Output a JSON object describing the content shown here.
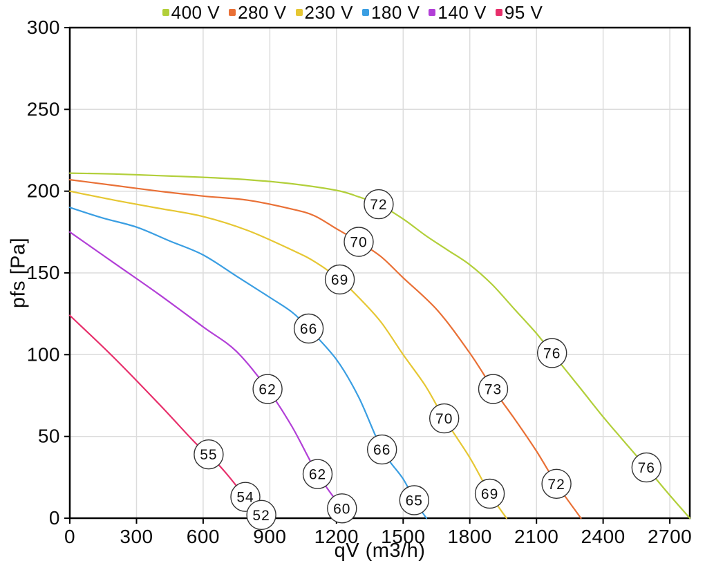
{
  "chart_data": {
    "type": "line",
    "title": "",
    "xlabel": "qV (m3/h)",
    "ylabel": "pfs [Pa]",
    "xlim": [
      0,
      2790
    ],
    "ylim": [
      0,
      300
    ],
    "x_ticks": [
      0,
      300,
      600,
      900,
      1200,
      1500,
      1800,
      2100,
      2400,
      2700
    ],
    "y_ticks": [
      0,
      50,
      100,
      150,
      200,
      250,
      300
    ],
    "grid": true,
    "legend_position": "top-center",
    "series": [
      {
        "name": "400 V",
        "color": "#b2cf3a",
        "points": [
          [
            0,
            211
          ],
          [
            200,
            210.5
          ],
          [
            400,
            209.5
          ],
          [
            600,
            208.5
          ],
          [
            800,
            207
          ],
          [
            1000,
            204.5
          ],
          [
            1200,
            200.5
          ],
          [
            1300,
            196.5
          ],
          [
            1390,
            192
          ],
          [
            1500,
            183
          ],
          [
            1600,
            173
          ],
          [
            1700,
            164
          ],
          [
            1800,
            155
          ],
          [
            1900,
            143
          ],
          [
            2000,
            128
          ],
          [
            2100,
            113
          ],
          [
            2170,
            101
          ],
          [
            2300,
            79
          ],
          [
            2400,
            62
          ],
          [
            2500,
            46
          ],
          [
            2595,
            31
          ],
          [
            2700,
            14
          ],
          [
            2790,
            0
          ]
        ],
        "labels": [
          {
            "text": "72",
            "x": 1390,
            "y": 192
          },
          {
            "text": "76",
            "x": 2170,
            "y": 101
          },
          {
            "text": "76",
            "x": 2595,
            "y": 31
          }
        ]
      },
      {
        "name": "280 V",
        "color": "#e97036",
        "points": [
          [
            0,
            207
          ],
          [
            200,
            203.5
          ],
          [
            400,
            200
          ],
          [
            600,
            197
          ],
          [
            800,
            194.5
          ],
          [
            1000,
            189
          ],
          [
            1100,
            185
          ],
          [
            1200,
            177
          ],
          [
            1300,
            169
          ],
          [
            1400,
            160
          ],
          [
            1500,
            147
          ],
          [
            1655,
            127
          ],
          [
            1800,
            101
          ],
          [
            1905,
            79
          ],
          [
            2000,
            61
          ],
          [
            2100,
            41
          ],
          [
            2190,
            21
          ],
          [
            2300,
            0
          ]
        ],
        "labels": [
          {
            "text": "70",
            "x": 1300,
            "y": 169
          },
          {
            "text": "73",
            "x": 1905,
            "y": 79
          },
          {
            "text": "72",
            "x": 2190,
            "y": 21
          }
        ]
      },
      {
        "name": "230 V",
        "color": "#e6c733",
        "points": [
          [
            0,
            200
          ],
          [
            200,
            194.5
          ],
          [
            400,
            189.5
          ],
          [
            600,
            184.5
          ],
          [
            800,
            176
          ],
          [
            1000,
            164
          ],
          [
            1100,
            157
          ],
          [
            1215,
            146
          ],
          [
            1300,
            135
          ],
          [
            1400,
            120
          ],
          [
            1500,
            100
          ],
          [
            1600,
            81
          ],
          [
            1685,
            61
          ],
          [
            1800,
            37
          ],
          [
            1890,
            15
          ],
          [
            1965,
            0
          ]
        ],
        "labels": [
          {
            "text": "69",
            "x": 1215,
            "y": 146
          },
          {
            "text": "70",
            "x": 1685,
            "y": 61
          },
          {
            "text": "69",
            "x": 1890,
            "y": 15
          }
        ]
      },
      {
        "name": "180 V",
        "color": "#3a9ee2",
        "points": [
          [
            0,
            190
          ],
          [
            150,
            183.5
          ],
          [
            300,
            178
          ],
          [
            450,
            169.5
          ],
          [
            600,
            161
          ],
          [
            750,
            148
          ],
          [
            900,
            135
          ],
          [
            1000,
            126
          ],
          [
            1075,
            116
          ],
          [
            1200,
            97
          ],
          [
            1300,
            74
          ],
          [
            1405,
            42
          ],
          [
            1500,
            24
          ],
          [
            1550,
            11
          ],
          [
            1605,
            0
          ]
        ],
        "labels": [
          {
            "text": "66",
            "x": 1075,
            "y": 116
          },
          {
            "text": "66",
            "x": 1405,
            "y": 42
          },
          {
            "text": "65",
            "x": 1550,
            "y": 11
          }
        ]
      },
      {
        "name": "140 V",
        "color": "#b23fd7",
        "points": [
          [
            0,
            175
          ],
          [
            200,
            156
          ],
          [
            400,
            137
          ],
          [
            600,
            117
          ],
          [
            750,
            102
          ],
          [
            890,
            79
          ],
          [
            1000,
            56
          ],
          [
            1115,
            27
          ],
          [
            1225,
            6
          ],
          [
            1258,
            0
          ]
        ],
        "labels": [
          {
            "text": "62",
            "x": 890,
            "y": 79
          },
          {
            "text": "62",
            "x": 1115,
            "y": 27
          },
          {
            "text": "60",
            "x": 1225,
            "y": 6
          }
        ]
      },
      {
        "name": "95 V",
        "color": "#e72f6b",
        "points": [
          [
            0,
            124
          ],
          [
            200,
            98
          ],
          [
            400,
            70
          ],
          [
            565,
            46
          ],
          [
            625,
            39
          ],
          [
            700,
            28
          ],
          [
            790,
            13
          ],
          [
            862,
            2
          ],
          [
            875,
            0
          ]
        ],
        "labels": [
          {
            "text": "55",
            "x": 625,
            "y": 39
          },
          {
            "text": "54",
            "x": 790,
            "y": 13
          },
          {
            "text": "52",
            "x": 862,
            "y": 2
          }
        ]
      }
    ]
  },
  "style": {
    "grid_color": "#dcdcdc",
    "axis_color": "#000000",
    "label_circle_fill": "#ffffff",
    "label_circle_stroke": "#333333"
  }
}
